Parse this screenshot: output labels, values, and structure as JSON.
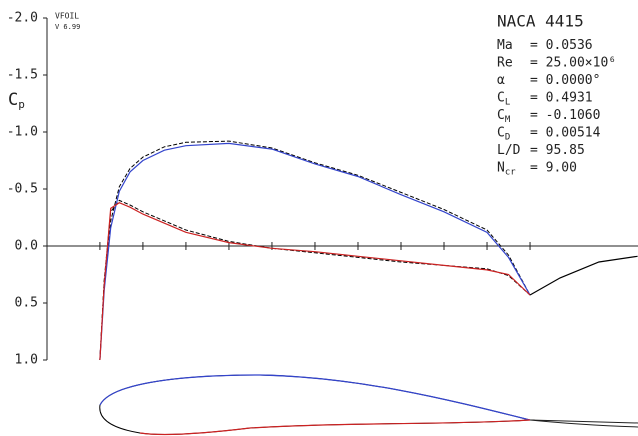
{
  "chart_data": {
    "type": "line",
    "title": "NACA 4415",
    "program": "VFOIL",
    "version": "V 6.99",
    "ylabel": "C",
    "ylabel_sub": "p",
    "annotations": [
      {
        "name": "Ma",
        "text": "= 0.0536"
      },
      {
        "name": "Re",
        "text": "= 25.00×10⁶"
      },
      {
        "name": "α",
        "text": "= 0.0000°"
      },
      {
        "name": "C",
        "sub": "L",
        "text": "= 0.4931"
      },
      {
        "name": "C",
        "sub": "M",
        "text": "= -0.1060"
      },
      {
        "name": "C",
        "sub": "D",
        "text": "= 0.00514"
      },
      {
        "name": "L/D",
        "text": "= 95.85"
      },
      {
        "name": "N",
        "sub": "cr",
        "text": "= 9.00"
      }
    ],
    "x": [
      0,
      0.01,
      0.025,
      0.045,
      0.07,
      0.1,
      0.15,
      0.2,
      0.3,
      0.4,
      0.5,
      0.6,
      0.7,
      0.8,
      0.9,
      0.95,
      1.0,
      1.07,
      1.16,
      1.25
    ],
    "series": [
      {
        "color": "#000000",
        "dash": true,
        "values": [
          1.0,
          0.32,
          -0.22,
          -0.52,
          -0.68,
          -0.78,
          -0.87,
          -0.91,
          -0.92,
          -0.86,
          -0.73,
          -0.62,
          -0.47,
          -0.32,
          -0.14,
          0.08,
          0.43,
          null,
          null,
          null
        ]
      },
      {
        "color": "#000000",
        "dash": true,
        "values": [
          1.0,
          0.3,
          -0.3,
          -0.4,
          -0.36,
          -0.3,
          -0.22,
          -0.14,
          -0.04,
          0.02,
          0.06,
          0.1,
          0.14,
          0.17,
          0.2,
          0.26,
          0.43,
          null,
          null,
          null
        ]
      },
      {
        "color": "#3344cc",
        "dash": false,
        "values": [
          1.0,
          0.39,
          -0.16,
          -0.48,
          -0.65,
          -0.75,
          -0.84,
          -0.88,
          -0.9,
          -0.85,
          -0.72,
          -0.61,
          -0.45,
          -0.3,
          -0.12,
          0.1,
          0.43,
          null,
          null,
          null
        ]
      },
      {
        "color": "#cc2222",
        "dash": false,
        "values": [
          1.0,
          0.34,
          -0.33,
          -0.38,
          -0.34,
          -0.28,
          -0.2,
          -0.12,
          -0.03,
          0.02,
          0.05,
          0.09,
          0.13,
          0.17,
          0.21,
          0.25,
          0.43,
          null,
          null,
          null
        ]
      },
      {
        "color": "#000000",
        "dash": false,
        "values": [
          null,
          null,
          null,
          null,
          null,
          null,
          null,
          null,
          null,
          null,
          null,
          null,
          null,
          null,
          null,
          null,
          0.43,
          0.28,
          0.14,
          0.09
        ]
      }
    ],
    "xlim": [
      -0.123,
      1.251
    ],
    "xticks": [
      0,
      0.1,
      0.2,
      0.3,
      0.4,
      0.5,
      0.6,
      0.7,
      0.8,
      0.9,
      1.0
    ],
    "ylim": [
      -2,
      1
    ],
    "yticks": [
      {
        "value": -2,
        "label": "-2.0"
      },
      -1.5,
      {
        "value": -1,
        "label": "-1.0"
      },
      -0.5,
      {
        "value": 0,
        "label": "0.0"
      },
      0.5,
      {
        "value": 1,
        "label": "1.0"
      }
    ],
    "inverted_y": true
  }
}
